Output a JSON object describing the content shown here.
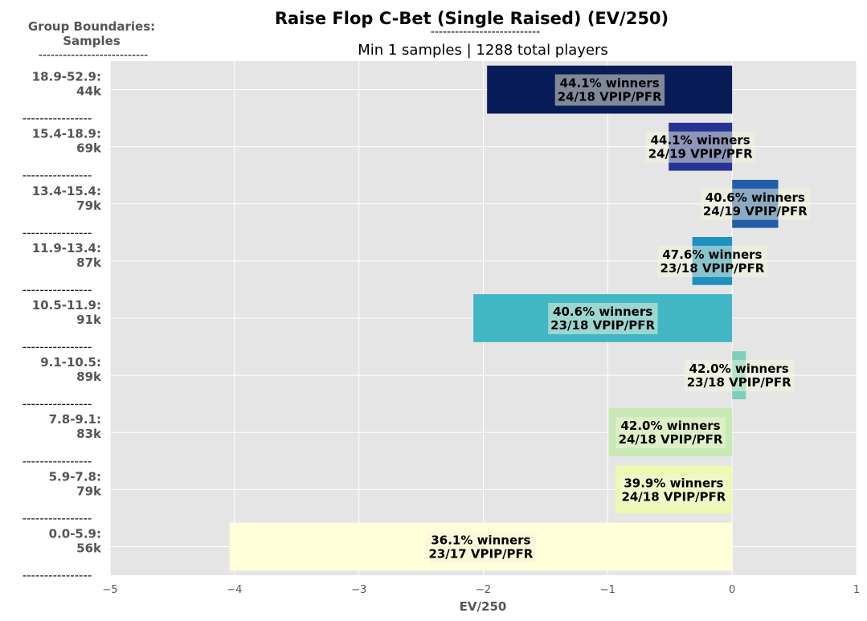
{
  "chart_data": {
    "type": "bar",
    "orientation": "horizontal",
    "title": "Raise Flop C-Bet (Single Raised) (EV/250)",
    "title_rule": "---------------------------",
    "subtitle": "Min 1 samples | 1288 total players",
    "corner_header": [
      "Group Boundaries:",
      "Samples"
    ],
    "corner_rule": "---------------------------",
    "separator": "----------------",
    "xlabel": "EV/250",
    "xlim": [
      -5,
      1
    ],
    "xticks": [
      "−5",
      "−4",
      "−3",
      "−2",
      "−1",
      "0",
      "1"
    ],
    "grid": true,
    "categories": [
      {
        "range": "18.9-52.9:",
        "samples": "44k",
        "value": -1.97,
        "winners": "44.1% winners",
        "vpip": "24/18 VPIP/PFR",
        "color": "#081d58"
      },
      {
        "range": "15.4-18.9:",
        "samples": "69k",
        "value": -0.51,
        "winners": "44.1% winners",
        "vpip": "24/19 VPIP/PFR",
        "color": "#253494"
      },
      {
        "range": "13.4-15.4:",
        "samples": "79k",
        "value": 0.37,
        "winners": "40.6% winners",
        "vpip": "24/19 VPIP/PFR",
        "color": "#225ea8"
      },
      {
        "range": "11.9-13.4:",
        "samples": "87k",
        "value": -0.32,
        "winners": "47.6% winners",
        "vpip": "23/18 VPIP/PFR",
        "color": "#1d91c0"
      },
      {
        "range": "10.5-11.9:",
        "samples": "91k",
        "value": -2.08,
        "winners": "40.6% winners",
        "vpip": "23/18 VPIP/PFR",
        "color": "#41b6c4"
      },
      {
        "range": "9.1-10.5:",
        "samples": "89k",
        "value": 0.11,
        "winners": "42.0% winners",
        "vpip": "23/18 VPIP/PFR",
        "color": "#7fcdbb"
      },
      {
        "range": "7.8-9.1:",
        "samples": "83k",
        "value": -0.99,
        "winners": "42.0% winners",
        "vpip": "24/18 VPIP/PFR",
        "color": "#c7e9b4"
      },
      {
        "range": "5.9-7.8:",
        "samples": "79k",
        "value": -0.94,
        "winners": "39.9% winners",
        "vpip": "24/18 VPIP/PFR",
        "color": "#edf8b1"
      },
      {
        "range": "0.0-5.9:",
        "samples": "56k",
        "value": -4.04,
        "winners": "36.1% winners",
        "vpip": "23/17 VPIP/PFR",
        "color": "#ffffd9"
      }
    ]
  }
}
